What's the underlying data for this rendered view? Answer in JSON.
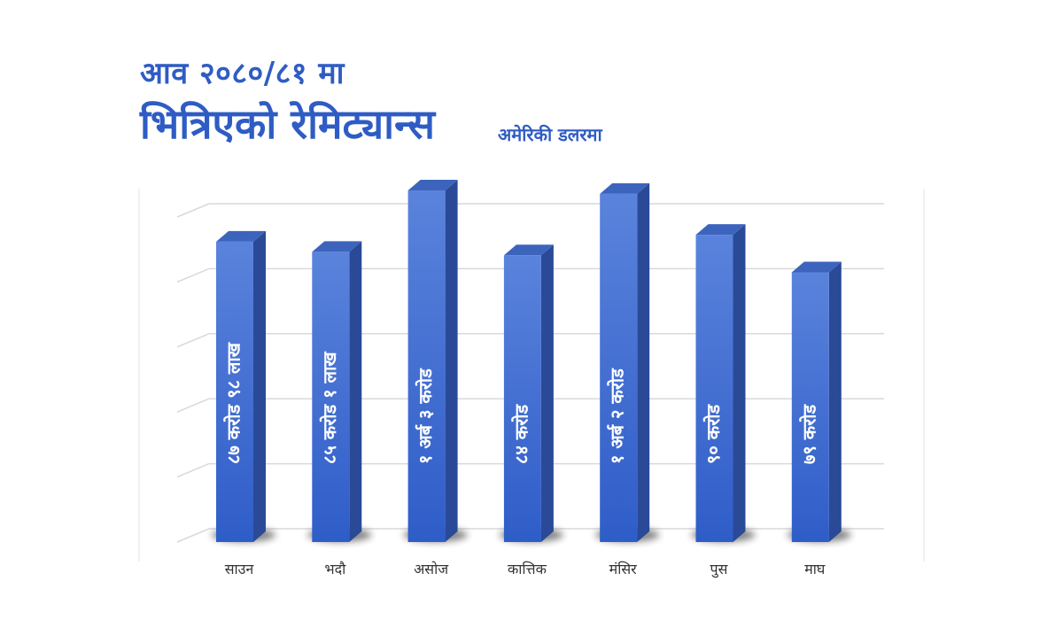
{
  "title": {
    "line1": "आव २०८०/८१ मा",
    "line2": "भित्रिएको रेमिट्यान्स",
    "unit": "अमेरिकी डलरमा"
  },
  "colors": {
    "title": "#2f5cc4",
    "bar_front_top": "#5a83dc",
    "bar_front_bottom": "#2f5dc8",
    "bar_side": "#2a4a98",
    "bar_top": "#3d64bd",
    "grid": "#d9d9d9"
  },
  "chart_data": {
    "type": "bar",
    "categories": [
      "साउन",
      "भदौ",
      "असोज",
      "कात्तिक",
      "मंसिर",
      "पुस",
      "माघ"
    ],
    "values": [
      87.98,
      85.01,
      103,
      84,
      102,
      90,
      79
    ],
    "data_labels": [
      "८७ करोड ९८ लाख",
      "८५ करोड १ लाख",
      "१ अर्ब ३ करोड",
      "८४ करोड",
      "१ अर्ब २ करोड",
      "९० करोड",
      "७९ करोड"
    ],
    "ylim": [
      0,
      110
    ],
    "grid": true,
    "axis_tick_labels": false,
    "style": "3d-column"
  }
}
